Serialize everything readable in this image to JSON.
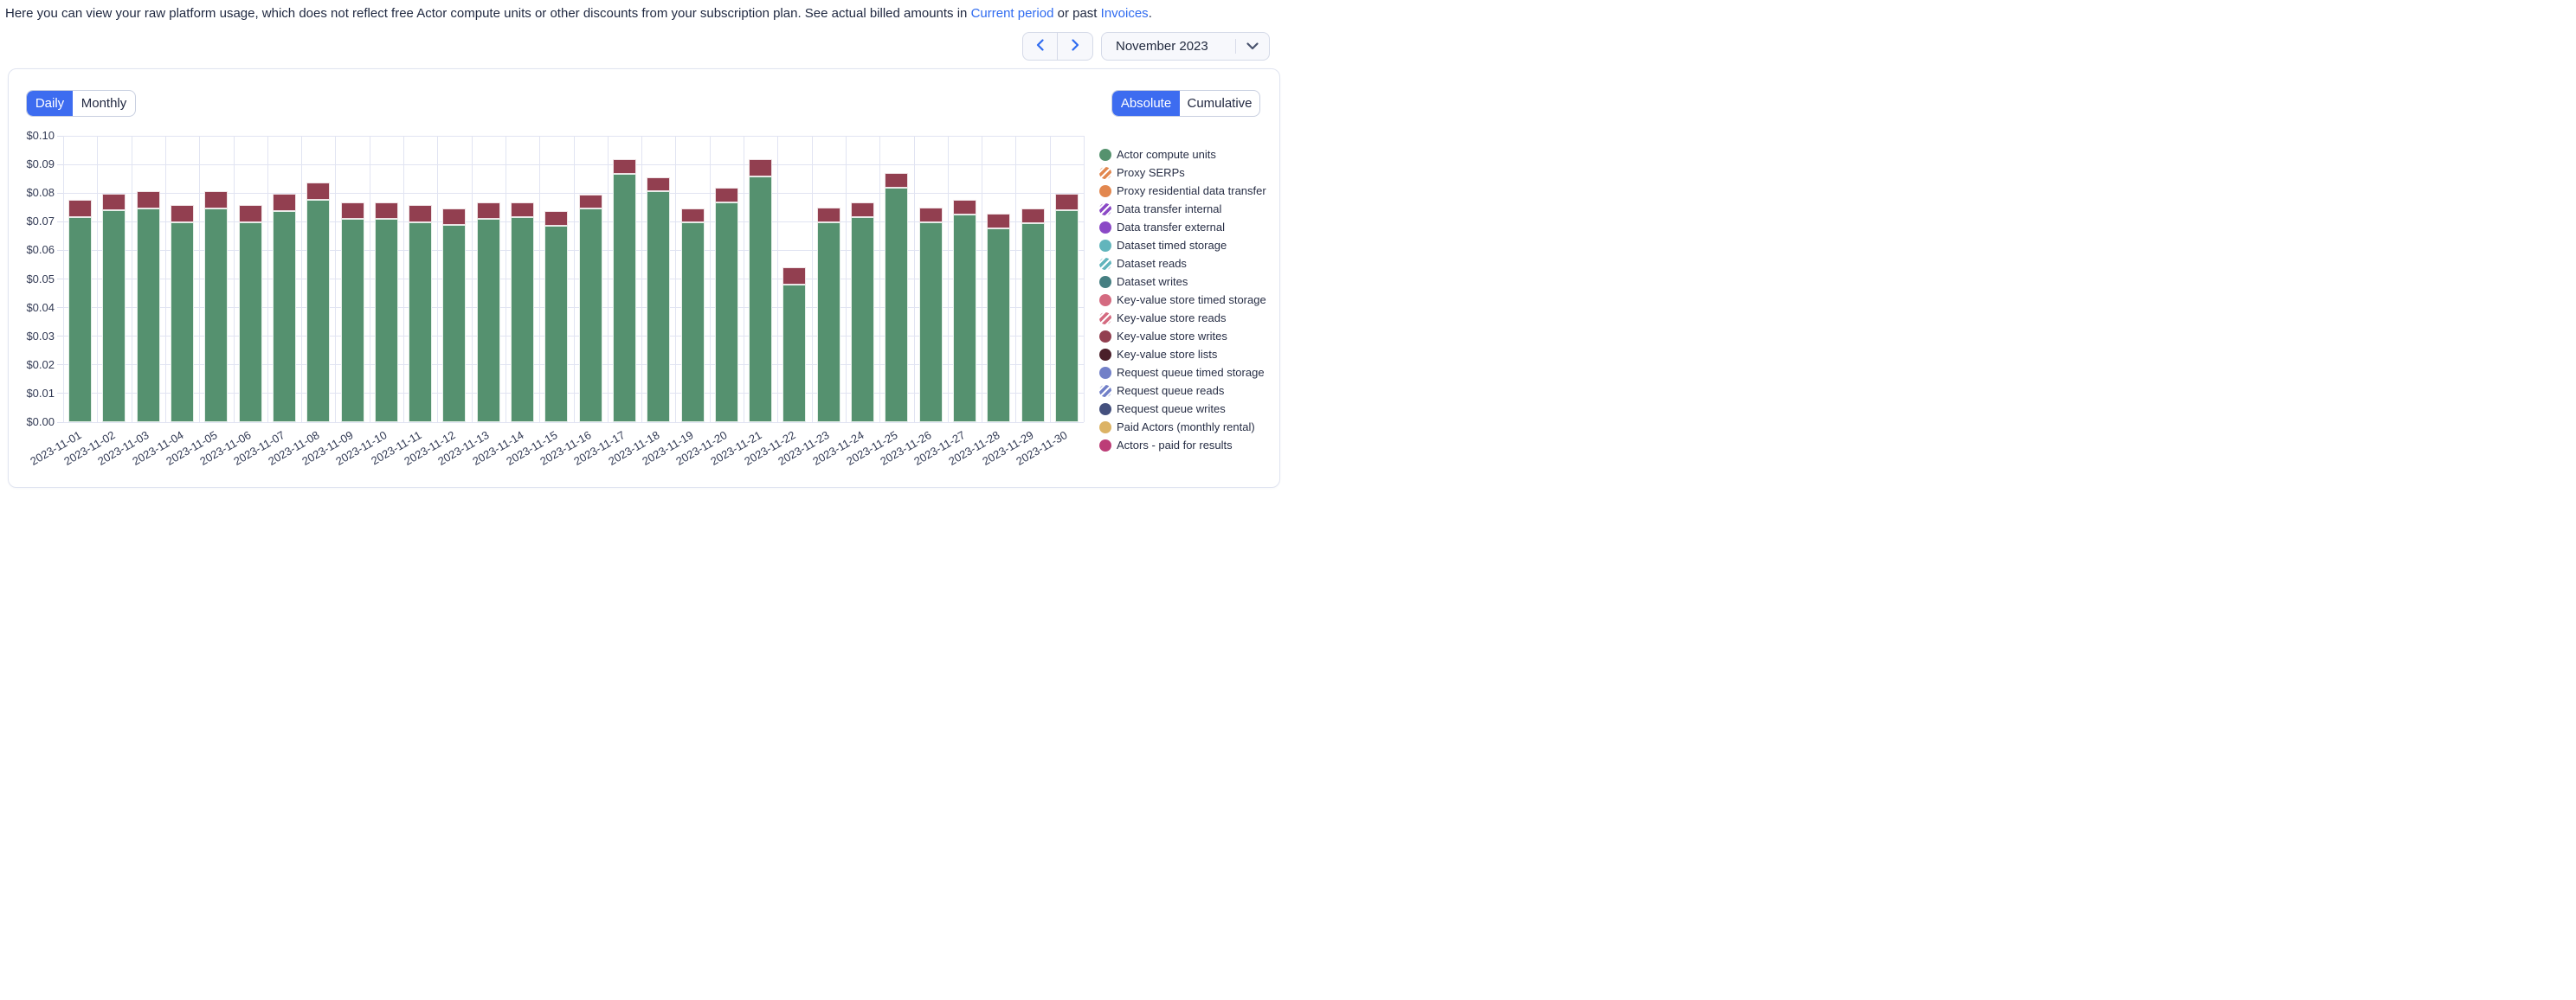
{
  "header": {
    "text_before_link1": "Here you can view your raw platform usage, which does not reflect free Actor compute units or other discounts from your subscription plan. See actual billed amounts in ",
    "link1": "Current period",
    "text_between_links": " or past ",
    "link2": "Invoices",
    "text_after_links": "."
  },
  "period_nav": {
    "prev_icon": "chevron-left",
    "next_icon": "chevron-right",
    "selected_period": "November 2023"
  },
  "view_toggle": {
    "options": [
      "Daily",
      "Monthly"
    ],
    "selected": "Daily"
  },
  "mode_toggle": {
    "options": [
      "Absolute",
      "Cumulative"
    ],
    "selected": "Absolute"
  },
  "colors": {
    "accent_blue": "#3d6cf0",
    "link_blue": "#2f6bf0",
    "bar_green": "#55916f",
    "bar_red": "#923f50",
    "gridline": "#e1e4f2"
  },
  "chart_data": {
    "type": "bar",
    "stacked": true,
    "grid": true,
    "legend_position": "right",
    "ylim": [
      0,
      0.1
    ],
    "ytick_labels": [
      "$0.10",
      "$0.09",
      "$0.08",
      "$0.07",
      "$0.06",
      "$0.05",
      "$0.04",
      "$0.03",
      "$0.02",
      "$0.01",
      "$0.00"
    ],
    "categories": [
      "2023-11-01",
      "2023-11-02",
      "2023-11-03",
      "2023-11-04",
      "2023-11-05",
      "2023-11-06",
      "2023-11-07",
      "2023-11-08",
      "2023-11-09",
      "2023-11-10",
      "2023-11-11",
      "2023-11-12",
      "2023-11-13",
      "2023-11-14",
      "2023-11-15",
      "2023-11-16",
      "2023-11-17",
      "2023-11-18",
      "2023-11-19",
      "2023-11-20",
      "2023-11-21",
      "2023-11-22",
      "2023-11-23",
      "2023-11-24",
      "2023-11-25",
      "2023-11-26",
      "2023-11-27",
      "2023-11-28",
      "2023-11-29",
      "2023-11-30"
    ],
    "series": [
      {
        "name": "Actor compute units",
        "color": "#55916f",
        "values": [
          0.0717,
          0.0739,
          0.0747,
          0.0697,
          0.0746,
          0.0697,
          0.0738,
          0.0777,
          0.071,
          0.071,
          0.0697,
          0.0688,
          0.071,
          0.0717,
          0.0687,
          0.0747,
          0.0868,
          0.0808,
          0.0697,
          0.0767,
          0.0857,
          0.0479,
          0.0697,
          0.0716,
          0.0818,
          0.0697,
          0.0726,
          0.0676,
          0.0696,
          0.0739
        ]
      },
      {
        "name": "Key-value store writes",
        "color": "#923f50",
        "values": [
          0.006,
          0.0058,
          0.0061,
          0.006,
          0.0061,
          0.006,
          0.0059,
          0.0061,
          0.0057,
          0.0057,
          0.006,
          0.0058,
          0.0057,
          0.0051,
          0.0051,
          0.0049,
          0.005,
          0.0049,
          0.0049,
          0.005,
          0.0061,
          0.0059,
          0.005,
          0.0051,
          0.005,
          0.005,
          0.0051,
          0.0051,
          0.0051,
          0.0057
        ]
      }
    ]
  },
  "legend": {
    "items": [
      {
        "label": "Actor compute units",
        "color": "#55926e",
        "pattern": "solid"
      },
      {
        "label": "Proxy SERPs",
        "color": "#e2874f",
        "pattern": "striped"
      },
      {
        "label": "Proxy residential data transfer",
        "color": "#e2874f",
        "pattern": "solid"
      },
      {
        "label": "Data transfer internal",
        "color": "#8b49c6",
        "pattern": "striped"
      },
      {
        "label": "Data transfer external",
        "color": "#8b49c6",
        "pattern": "solid"
      },
      {
        "label": "Dataset timed storage",
        "color": "#62b5bc",
        "pattern": "solid"
      },
      {
        "label": "Dataset reads",
        "color": "#62b5bc",
        "pattern": "striped"
      },
      {
        "label": "Dataset writes",
        "color": "#467f82",
        "pattern": "solid"
      },
      {
        "label": "Key-value store timed storage",
        "color": "#d46a80",
        "pattern": "solid"
      },
      {
        "label": "Key-value store reads",
        "color": "#d46a80",
        "pattern": "striped"
      },
      {
        "label": "Key-value store writes",
        "color": "#923f50",
        "pattern": "solid"
      },
      {
        "label": "Key-value store lists",
        "color": "#4a1f2a",
        "pattern": "solid"
      },
      {
        "label": "Request queue timed storage",
        "color": "#7280c8",
        "pattern": "solid"
      },
      {
        "label": "Request queue reads",
        "color": "#7280c8",
        "pattern": "striped"
      },
      {
        "label": "Request queue writes",
        "color": "#44507e",
        "pattern": "solid"
      },
      {
        "label": "Paid Actors (monthly rental)",
        "color": "#dcb365",
        "pattern": "solid"
      },
      {
        "label": "Actors - paid for results",
        "color": "#bc3d77",
        "pattern": "solid"
      }
    ]
  }
}
